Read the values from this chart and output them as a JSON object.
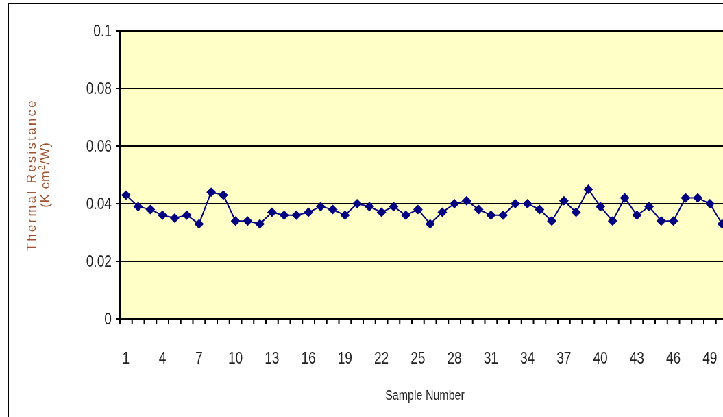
{
  "chart_data": {
    "type": "line",
    "xlabel": "Sample Number",
    "ylabel": "Thermal Resistance\n(K cm$^{2}$/W)",
    "categories": [
      "1",
      null,
      null,
      "4",
      null,
      null,
      "7",
      null,
      null,
      "10",
      null,
      null,
      "13",
      null,
      null,
      "16",
      null,
      null,
      "19",
      null,
      null,
      "22",
      null,
      null,
      "25",
      null,
      null,
      "28",
      null,
      null,
      "31",
      null,
      null,
      "34",
      null,
      null,
      "37",
      null,
      null,
      "40",
      null,
      null,
      "43",
      null,
      null,
      "46",
      null,
      null,
      "49",
      null
    ],
    "series": [
      {
        "color": "#000080",
        "values": [
          0.043,
          0.039,
          0.038,
          0.036,
          0.035,
          0.036,
          0.033,
          0.044,
          0.043,
          0.034,
          0.034,
          0.033,
          0.037,
          0.036,
          0.036,
          0.037,
          0.039,
          0.038,
          0.036,
          0.04,
          0.039,
          0.037,
          0.039,
          0.036,
          0.038,
          0.033,
          0.037,
          0.04,
          0.041,
          0.038,
          0.036,
          0.036,
          0.04,
          0.04,
          0.038,
          0.034,
          0.041,
          0.037,
          0.045,
          0.039,
          0.034,
          0.042,
          0.036,
          0.039,
          0.034,
          0.034,
          0.042,
          0.042,
          0.04,
          0.033
        ]
      }
    ],
    "ylim": [
      0,
      0.1
    ],
    "yticks": [
      0,
      0.02,
      0.04,
      0.06,
      0.08,
      0.1
    ],
    "grid": "y",
    "marker": "diamond",
    "line_style": "solid"
  }
}
